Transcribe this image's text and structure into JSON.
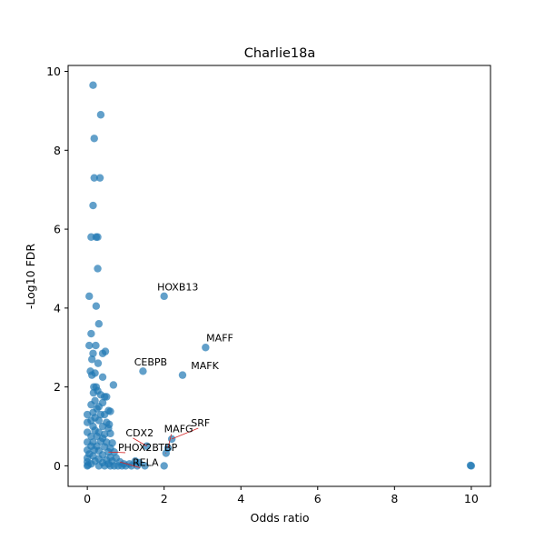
{
  "chart_data": {
    "type": "scatter",
    "title": "Charlie18a",
    "xlabel": "Odds ratio",
    "ylabel": "-Log10 FDR",
    "xlim": [
      -0.5,
      10.5
    ],
    "ylim": [
      -0.52,
      10.15
    ],
    "xticks": [
      0,
      2,
      4,
      6,
      8,
      10
    ],
    "yticks": [
      0,
      2,
      4,
      6,
      8,
      10
    ],
    "grid": false,
    "points": [
      {
        "x": 0.15,
        "y": 9.65
      },
      {
        "x": 0.35,
        "y": 8.9
      },
      {
        "x": 0.18,
        "y": 8.3
      },
      {
        "x": 0.18,
        "y": 7.3
      },
      {
        "x": 0.33,
        "y": 7.3
      },
      {
        "x": 0.15,
        "y": 6.6
      },
      {
        "x": 0.1,
        "y": 5.8
      },
      {
        "x": 0.23,
        "y": 5.8
      },
      {
        "x": 0.27,
        "y": 5.8
      },
      {
        "x": 0.27,
        "y": 5.0
      },
      {
        "x": 0.05,
        "y": 4.3
      },
      {
        "x": 2.0,
        "y": 4.3
      },
      {
        "x": 0.23,
        "y": 4.05
      },
      {
        "x": 0.3,
        "y": 3.6
      },
      {
        "x": 0.1,
        "y": 3.35
      },
      {
        "x": 0.05,
        "y": 3.05
      },
      {
        "x": 0.22,
        "y": 3.05
      },
      {
        "x": 3.08,
        "y": 3.0
      },
      {
        "x": 0.15,
        "y": 2.85
      },
      {
        "x": 0.4,
        "y": 2.85
      },
      {
        "x": 0.47,
        "y": 2.9
      },
      {
        "x": 0.12,
        "y": 2.7
      },
      {
        "x": 0.28,
        "y": 2.6
      },
      {
        "x": 0.08,
        "y": 2.4
      },
      {
        "x": 0.2,
        "y": 2.35
      },
      {
        "x": 1.45,
        "y": 2.4
      },
      {
        "x": 0.12,
        "y": 2.3
      },
      {
        "x": 0.4,
        "y": 2.25
      },
      {
        "x": 2.48,
        "y": 2.3
      },
      {
        "x": 0.68,
        "y": 2.05
      },
      {
        "x": 0.17,
        "y": 2.0
      },
      {
        "x": 0.23,
        "y": 2.0
      },
      {
        "x": 0.27,
        "y": 1.9
      },
      {
        "x": 0.16,
        "y": 1.85
      },
      {
        "x": 0.35,
        "y": 1.8
      },
      {
        "x": 0.45,
        "y": 1.75
      },
      {
        "x": 0.5,
        "y": 1.75
      },
      {
        "x": 0.2,
        "y": 1.65
      },
      {
        "x": 0.4,
        "y": 1.6
      },
      {
        "x": 0.1,
        "y": 1.55
      },
      {
        "x": 0.3,
        "y": 1.5
      },
      {
        "x": 0.25,
        "y": 1.45
      },
      {
        "x": 0.55,
        "y": 1.4
      },
      {
        "x": 0.6,
        "y": 1.38
      },
      {
        "x": 0.15,
        "y": 1.35
      },
      {
        "x": 0.45,
        "y": 1.3
      },
      {
        "x": 0.0,
        "y": 1.3
      },
      {
        "x": 0.35,
        "y": 1.3
      },
      {
        "x": 0.2,
        "y": 1.22
      },
      {
        "x": 0.0,
        "y": 1.1
      },
      {
        "x": 0.1,
        "y": 1.15
      },
      {
        "x": 0.3,
        "y": 1.15
      },
      {
        "x": 0.5,
        "y": 1.1
      },
      {
        "x": 0.57,
        "y": 1.05
      },
      {
        "x": 0.15,
        "y": 1.0
      },
      {
        "x": 0.4,
        "y": 1.0
      },
      {
        "x": 0.55,
        "y": 0.95
      },
      {
        "x": 0.0,
        "y": 0.85
      },
      {
        "x": 0.2,
        "y": 0.9
      },
      {
        "x": 0.3,
        "y": 0.85
      },
      {
        "x": 0.45,
        "y": 0.8
      },
      {
        "x": 0.6,
        "y": 0.82
      },
      {
        "x": 0.1,
        "y": 0.75
      },
      {
        "x": 0.25,
        "y": 0.75
      },
      {
        "x": 0.4,
        "y": 0.7
      },
      {
        "x": 0.0,
        "y": 0.6
      },
      {
        "x": 0.15,
        "y": 0.6
      },
      {
        "x": 0.35,
        "y": 0.62
      },
      {
        "x": 0.5,
        "y": 0.6
      },
      {
        "x": 0.65,
        "y": 0.58
      },
      {
        "x": 0.1,
        "y": 0.5
      },
      {
        "x": 0.25,
        "y": 0.5
      },
      {
        "x": 0.45,
        "y": 0.48
      },
      {
        "x": 0.6,
        "y": 0.45
      },
      {
        "x": 1.55,
        "y": 0.5
      },
      {
        "x": 2.2,
        "y": 0.68
      },
      {
        "x": 2.1,
        "y": 0.45
      },
      {
        "x": 0.0,
        "y": 0.4
      },
      {
        "x": 0.18,
        "y": 0.4
      },
      {
        "x": 0.3,
        "y": 0.38
      },
      {
        "x": 0.55,
        "y": 0.35
      },
      {
        "x": 0.7,
        "y": 0.35
      },
      {
        "x": 2.05,
        "y": 0.32
      },
      {
        "x": 0.05,
        "y": 0.3
      },
      {
        "x": 0.4,
        "y": 0.28
      },
      {
        "x": 0.15,
        "y": 0.25
      },
      {
        "x": 0.6,
        "y": 0.22
      },
      {
        "x": 0.75,
        "y": 0.2
      },
      {
        "x": 0.0,
        "y": 0.2
      },
      {
        "x": 0.3,
        "y": 0.18
      },
      {
        "x": 0.5,
        "y": 0.15
      },
      {
        "x": 0.2,
        "y": 0.12
      },
      {
        "x": 0.65,
        "y": 0.12
      },
      {
        "x": 0.85,
        "y": 0.1
      },
      {
        "x": 1.25,
        "y": 0.12
      },
      {
        "x": 0.0,
        "y": 0.1
      },
      {
        "x": 0.4,
        "y": 0.08
      },
      {
        "x": 0.1,
        "y": 0.05
      },
      {
        "x": 0.55,
        "y": 0.05
      },
      {
        "x": 0.95,
        "y": 0.05
      },
      {
        "x": 1.1,
        "y": 0.05
      },
      {
        "x": 1.35,
        "y": 0.08
      },
      {
        "x": 0.0,
        "y": 0.0
      },
      {
        "x": 0.02,
        "y": 0.02
      },
      {
        "x": 0.3,
        "y": 0.0
      },
      {
        "x": 0.45,
        "y": 0.0
      },
      {
        "x": 0.6,
        "y": 0.0
      },
      {
        "x": 0.7,
        "y": 0.0
      },
      {
        "x": 0.8,
        "y": 0.0
      },
      {
        "x": 0.9,
        "y": 0.0
      },
      {
        "x": 1.0,
        "y": 0.0
      },
      {
        "x": 1.15,
        "y": 0.0
      },
      {
        "x": 1.3,
        "y": 0.0
      },
      {
        "x": 1.5,
        "y": 0.0
      },
      {
        "x": 2.0,
        "y": 0.0
      },
      {
        "x": 10.0,
        "y": 0.0
      },
      {
        "x": 9.98,
        "y": 0.01
      }
    ],
    "annotations": [
      {
        "text": "HOXB13",
        "x": 2.0,
        "y": 4.3,
        "tx": 1.82,
        "ty": 4.45,
        "leader": false
      },
      {
        "text": "MAFF",
        "x": 3.08,
        "y": 3.0,
        "tx": 3.1,
        "ty": 3.15,
        "leader": false
      },
      {
        "text": "CEBPB",
        "x": 1.45,
        "y": 2.4,
        "tx": 1.22,
        "ty": 2.55,
        "leader": false
      },
      {
        "text": "MAFK",
        "x": 2.48,
        "y": 2.3,
        "tx": 2.7,
        "ty": 2.45,
        "leader": false
      },
      {
        "text": "SRF",
        "x": 2.2,
        "y": 0.68,
        "tx": 2.7,
        "ty": 1.0,
        "leader": true
      },
      {
        "text": "MAFG",
        "x": 2.1,
        "y": 0.45,
        "tx": 2.0,
        "ty": 0.85,
        "leader": true
      },
      {
        "text": "CDX2",
        "x": 1.55,
        "y": 0.5,
        "tx": 1.0,
        "ty": 0.75,
        "leader": true
      },
      {
        "text": "TBP",
        "x": 2.05,
        "y": 0.32,
        "tx": 1.85,
        "ty": 0.38,
        "leader": true
      },
      {
        "text": "PHOX2B",
        "x": 0.55,
        "y": 0.35,
        "tx": 0.8,
        "ty": 0.38,
        "leader": true
      },
      {
        "text": "RELA",
        "x": 0.85,
        "y": 0.1,
        "tx": 1.18,
        "ty": 0.0,
        "leader": true
      }
    ]
  }
}
